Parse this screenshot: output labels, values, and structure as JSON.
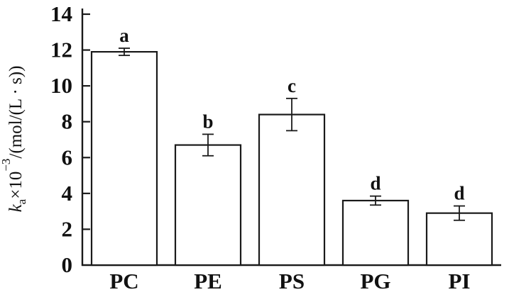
{
  "figure": {
    "kind": "scientific-bar-chart",
    "background_color": "#ffffff",
    "axis_color": "#111111"
  },
  "chart_data": {
    "type": "bar",
    "categories": [
      "PC",
      "PE",
      "PS",
      "PG",
      "PI"
    ],
    "values": [
      11.9,
      6.7,
      8.4,
      3.6,
      2.9
    ],
    "errors": [
      0.2,
      0.6,
      0.9,
      0.25,
      0.4
    ],
    "sig_letters": [
      "a",
      "b",
      "c",
      "d",
      "d"
    ],
    "title": "",
    "xlabel": "",
    "ylabel": "ka×10−3/(mol/(L · s))",
    "ylabel_segments": [
      {
        "t": "k",
        "style": "italic"
      },
      {
        "t": "a",
        "style": "sub"
      },
      {
        "t": "×10",
        "style": "normal"
      },
      {
        "t": "−3",
        "style": "sup"
      },
      {
        "t": "/(mol/(L · s))",
        "style": "normal"
      }
    ],
    "ylim": [
      0,
      14
    ],
    "ytick_step": 2,
    "ytick_labels": [
      "0",
      "2",
      "4",
      "6",
      "8",
      "10",
      "12",
      "14"
    ],
    "grid": false,
    "legend": "none",
    "bar_fill": "#ffffff",
    "bar_stroke": "#1a1a1a",
    "error_bar_color": "#1a1a1a"
  }
}
